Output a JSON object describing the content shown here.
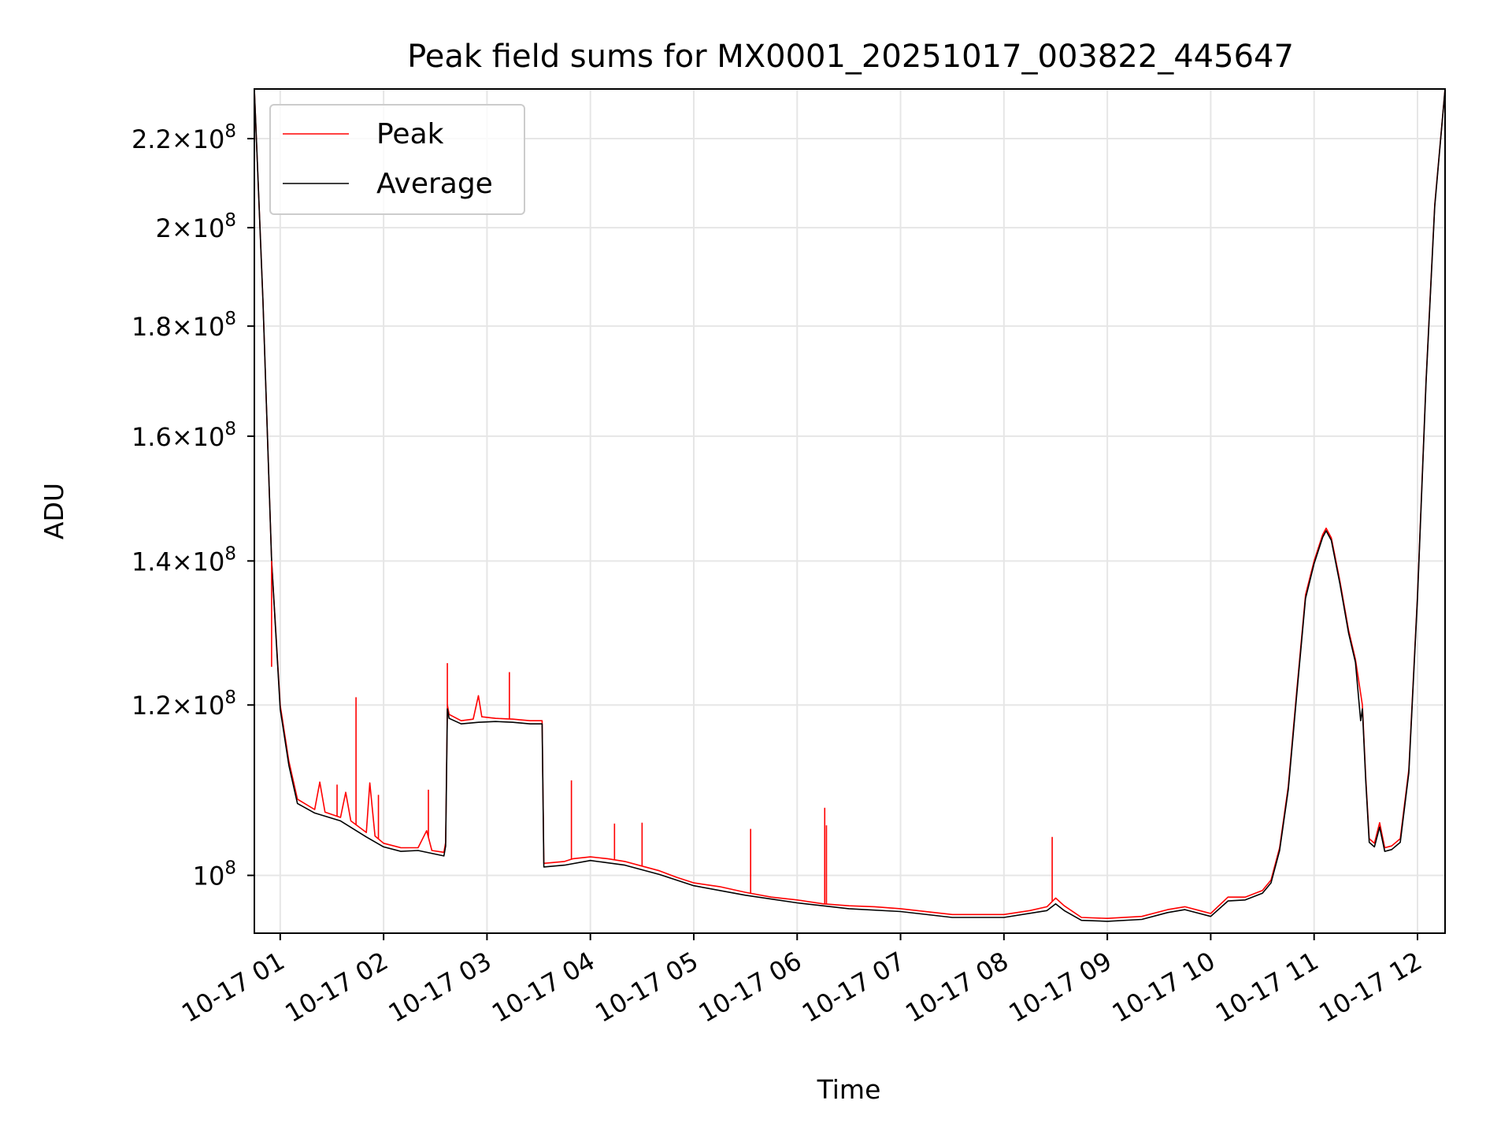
{
  "chart_data": {
    "type": "line",
    "title": "Peak field sums for MX0001_20251017_003822_445647",
    "xlabel": "Time",
    "ylabel": "ADU",
    "yscale": "log",
    "grid": true,
    "legend_position": "top-left",
    "xlim": [
      "2025-10-17 00:45",
      "2025-10-17 12:16"
    ],
    "ylim": [
      94000000,
      232000000
    ],
    "x_ticks": [
      {
        "t": "2025-10-17 01:00",
        "label": "10-17 01"
      },
      {
        "t": "2025-10-17 02:00",
        "label": "10-17 02"
      },
      {
        "t": "2025-10-17 03:00",
        "label": "10-17 03"
      },
      {
        "t": "2025-10-17 04:00",
        "label": "10-17 04"
      },
      {
        "t": "2025-10-17 05:00",
        "label": "10-17 05"
      },
      {
        "t": "2025-10-17 06:00",
        "label": "10-17 06"
      },
      {
        "t": "2025-10-17 07:00",
        "label": "10-17 07"
      },
      {
        "t": "2025-10-17 08:00",
        "label": "10-17 08"
      },
      {
        "t": "2025-10-17 09:00",
        "label": "10-17 09"
      },
      {
        "t": "2025-10-17 10:00",
        "label": "10-17 10"
      },
      {
        "t": "2025-10-17 11:00",
        "label": "10-17 11"
      },
      {
        "t": "2025-10-17 12:00",
        "label": "10-17 12"
      }
    ],
    "y_ticks": [
      {
        "value": 100000000,
        "mantissa": "",
        "exponent": "8"
      },
      {
        "value": 120000000,
        "mantissa": "1.2",
        "exponent": "8"
      },
      {
        "value": 140000000,
        "mantissa": "1.4",
        "exponent": "8"
      },
      {
        "value": 160000000,
        "mantissa": "1.6",
        "exponent": "8"
      },
      {
        "value": 180000000,
        "mantissa": "1.8",
        "exponent": "8"
      },
      {
        "value": 200000000,
        "mantissa": "2",
        "exponent": "8"
      },
      {
        "value": 220000000,
        "mantissa": "2.2",
        "exponent": "8"
      }
    ],
    "series": [
      {
        "name": "Peak",
        "color": "#ff0000",
        "points": [
          [
            "2025-10-17 00:45",
            232000000
          ],
          [
            "2025-10-17 00:50",
            185000000
          ],
          [
            "2025-10-17 00:55",
            140000000
          ],
          [
            "2025-10-17 01:00",
            120000000
          ],
          [
            "2025-10-17 01:05",
            113000000
          ],
          [
            "2025-10-17 01:10",
            108500000
          ],
          [
            "2025-10-17 01:20",
            107300000
          ],
          [
            "2025-10-17 01:23",
            110500000
          ],
          [
            "2025-10-17 01:26",
            107000000
          ],
          [
            "2025-10-17 01:35",
            106400000
          ],
          [
            "2025-10-17 01:38",
            109300000
          ],
          [
            "2025-10-17 01:41",
            106000000
          ],
          [
            "2025-10-17 01:50",
            104700000
          ],
          [
            "2025-10-17 01:52",
            110400000
          ],
          [
            "2025-10-17 01:55",
            104300000
          ],
          [
            "2025-10-17 02:00",
            103500000
          ],
          [
            "2025-10-17 02:10",
            103000000
          ],
          [
            "2025-10-17 02:20",
            103000000
          ],
          [
            "2025-10-17 02:25",
            104900000
          ],
          [
            "2025-10-17 02:28",
            102700000
          ],
          [
            "2025-10-17 02:35",
            102500000
          ],
          [
            "2025-10-17 02:36",
            103600000
          ],
          [
            "2025-10-17 02:37",
            120000000
          ],
          [
            "2025-10-17 02:38",
            118800000
          ],
          [
            "2025-10-17 02:45",
            118000000
          ],
          [
            "2025-10-17 02:52",
            118200000
          ],
          [
            "2025-10-17 02:55",
            121200000
          ],
          [
            "2025-10-17 02:57",
            118500000
          ],
          [
            "2025-10-17 03:05",
            118300000
          ],
          [
            "2025-10-17 03:15",
            118200000
          ],
          [
            "2025-10-17 03:25",
            118000000
          ],
          [
            "2025-10-17 03:32",
            118000000
          ],
          [
            "2025-10-17 03:33",
            101300000
          ],
          [
            "2025-10-17 03:45",
            101500000
          ],
          [
            "2025-10-17 03:50",
            101800000
          ],
          [
            "2025-10-17 04:00",
            102000000
          ],
          [
            "2025-10-17 04:10",
            101800000
          ],
          [
            "2025-10-17 04:20",
            101500000
          ],
          [
            "2025-10-17 04:30",
            101000000
          ],
          [
            "2025-10-17 04:40",
            100500000
          ],
          [
            "2025-10-17 04:50",
            99800000
          ],
          [
            "2025-10-17 05:00",
            99200000
          ],
          [
            "2025-10-17 05:15",
            98800000
          ],
          [
            "2025-10-17 05:30",
            98200000
          ],
          [
            "2025-10-17 05:45",
            97700000
          ],
          [
            "2025-10-17 06:00",
            97400000
          ],
          [
            "2025-10-17 06:15",
            97000000
          ],
          [
            "2025-10-17 06:30",
            96800000
          ],
          [
            "2025-10-17 06:45",
            96700000
          ],
          [
            "2025-10-17 07:00",
            96500000
          ],
          [
            "2025-10-17 07:30",
            95900000
          ],
          [
            "2025-10-17 08:00",
            95900000
          ],
          [
            "2025-10-17 08:15",
            96300000
          ],
          [
            "2025-10-17 08:25",
            96700000
          ],
          [
            "2025-10-17 08:30",
            97600000
          ],
          [
            "2025-10-17 08:35",
            96800000
          ],
          [
            "2025-10-17 08:45",
            95600000
          ],
          [
            "2025-10-17 09:00",
            95500000
          ],
          [
            "2025-10-17 09:20",
            95700000
          ],
          [
            "2025-10-17 09:35",
            96400000
          ],
          [
            "2025-10-17 09:45",
            96700000
          ],
          [
            "2025-10-17 10:00",
            96000000
          ],
          [
            "2025-10-17 10:10",
            97700000
          ],
          [
            "2025-10-17 10:20",
            97700000
          ],
          [
            "2025-10-17 10:30",
            98400000
          ],
          [
            "2025-10-17 10:35",
            99500000
          ],
          [
            "2025-10-17 10:40",
            103000000
          ],
          [
            "2025-10-17 10:45",
            110000000
          ],
          [
            "2025-10-17 10:50",
            122000000
          ],
          [
            "2025-10-17 10:55",
            135000000
          ],
          [
            "2025-10-17 11:00",
            140000000
          ],
          [
            "2025-10-17 11:05",
            144000000
          ],
          [
            "2025-10-17 11:07",
            145000000
          ],
          [
            "2025-10-17 11:10",
            143500000
          ],
          [
            "2025-10-17 11:15",
            137000000
          ],
          [
            "2025-10-17 11:20",
            130000000
          ],
          [
            "2025-10-17 11:24",
            126000000
          ],
          [
            "2025-10-17 11:28",
            120000000
          ],
          [
            "2025-10-17 11:30",
            111000000
          ],
          [
            "2025-10-17 11:32",
            104000000
          ],
          [
            "2025-10-17 11:35",
            103500000
          ],
          [
            "2025-10-17 11:38",
            105800000
          ],
          [
            "2025-10-17 11:41",
            103000000
          ],
          [
            "2025-10-17 11:45",
            103200000
          ],
          [
            "2025-10-17 11:50",
            104000000
          ],
          [
            "2025-10-17 11:55",
            112000000
          ],
          [
            "2025-10-17 12:00",
            135000000
          ],
          [
            "2025-10-17 12:05",
            170000000
          ],
          [
            "2025-10-17 12:10",
            205000000
          ],
          [
            "2025-10-17 12:16",
            232000000
          ]
        ]
      },
      {
        "name": "Average",
        "color": "#000000",
        "points": [
          [
            "2025-10-17 00:45",
            232000000
          ],
          [
            "2025-10-17 00:50",
            185000000
          ],
          [
            "2025-10-17 00:55",
            140000000
          ],
          [
            "2025-10-17 01:00",
            119500000
          ],
          [
            "2025-10-17 01:05",
            112500000
          ],
          [
            "2025-10-17 01:10",
            108000000
          ],
          [
            "2025-10-17 01:20",
            106900000
          ],
          [
            "2025-10-17 01:35",
            106000000
          ],
          [
            "2025-10-17 01:50",
            104200000
          ],
          [
            "2025-10-17 02:00",
            103100000
          ],
          [
            "2025-10-17 02:10",
            102600000
          ],
          [
            "2025-10-17 02:20",
            102700000
          ],
          [
            "2025-10-17 02:35",
            102100000
          ],
          [
            "2025-10-17 02:36",
            103200000
          ],
          [
            "2025-10-17 02:37",
            119500000
          ],
          [
            "2025-10-17 02:38",
            118300000
          ],
          [
            "2025-10-17 02:45",
            117600000
          ],
          [
            "2025-10-17 02:55",
            117800000
          ],
          [
            "2025-10-17 03:05",
            117900000
          ],
          [
            "2025-10-17 03:15",
            117800000
          ],
          [
            "2025-10-17 03:25",
            117600000
          ],
          [
            "2025-10-17 03:32",
            117600000
          ],
          [
            "2025-10-17 03:33",
            100900000
          ],
          [
            "2025-10-17 03:45",
            101100000
          ],
          [
            "2025-10-17 04:00",
            101600000
          ],
          [
            "2025-10-17 04:20",
            101100000
          ],
          [
            "2025-10-17 04:40",
            100100000
          ],
          [
            "2025-10-17 05:00",
            98900000
          ],
          [
            "2025-10-17 05:30",
            97900000
          ],
          [
            "2025-10-17 06:00",
            97100000
          ],
          [
            "2025-10-17 06:30",
            96500000
          ],
          [
            "2025-10-17 07:00",
            96200000
          ],
          [
            "2025-10-17 07:30",
            95600000
          ],
          [
            "2025-10-17 08:00",
            95600000
          ],
          [
            "2025-10-17 08:25",
            96300000
          ],
          [
            "2025-10-17 08:30",
            97000000
          ],
          [
            "2025-10-17 08:35",
            96300000
          ],
          [
            "2025-10-17 08:45",
            95300000
          ],
          [
            "2025-10-17 09:00",
            95200000
          ],
          [
            "2025-10-17 09:20",
            95400000
          ],
          [
            "2025-10-17 09:35",
            96100000
          ],
          [
            "2025-10-17 09:45",
            96400000
          ],
          [
            "2025-10-17 10:00",
            95700000
          ],
          [
            "2025-10-17 10:10",
            97300000
          ],
          [
            "2025-10-17 10:20",
            97400000
          ],
          [
            "2025-10-17 10:30",
            98100000
          ],
          [
            "2025-10-17 10:35",
            99200000
          ],
          [
            "2025-10-17 10:40",
            102700000
          ],
          [
            "2025-10-17 10:45",
            109600000
          ],
          [
            "2025-10-17 10:50",
            121500000
          ],
          [
            "2025-10-17 10:55",
            134500000
          ],
          [
            "2025-10-17 11:00",
            139600000
          ],
          [
            "2025-10-17 11:05",
            143600000
          ],
          [
            "2025-10-17 11:07",
            144600000
          ],
          [
            "2025-10-17 11:10",
            143100000
          ],
          [
            "2025-10-17 11:15",
            136600000
          ],
          [
            "2025-10-17 11:20",
            129600000
          ],
          [
            "2025-10-17 11:24",
            125600000
          ],
          [
            "2025-10-17 11:27",
            118000000
          ],
          [
            "2025-10-17 11:28",
            119500000
          ],
          [
            "2025-10-17 11:30",
            110600000
          ],
          [
            "2025-10-17 11:32",
            103600000
          ],
          [
            "2025-10-17 11:35",
            103100000
          ],
          [
            "2025-10-17 11:38",
            105300000
          ],
          [
            "2025-10-17 11:41",
            102600000
          ],
          [
            "2025-10-17 11:45",
            102800000
          ],
          [
            "2025-10-17 11:50",
            103600000
          ],
          [
            "2025-10-17 11:55",
            111600000
          ],
          [
            "2025-10-17 12:00",
            134600000
          ],
          [
            "2025-10-17 12:05",
            169600000
          ],
          [
            "2025-10-17 12:10",
            204600000
          ],
          [
            "2025-10-17 12:16",
            232000000
          ]
        ]
      }
    ],
    "peak_spikes": [
      [
        "2025-10-17 00:55",
        125000000
      ],
      [
        "2025-10-17 01:12",
        108300000
      ],
      [
        "2025-10-17 01:33",
        110200000
      ],
      [
        "2025-10-17 01:44",
        121000000
      ],
      [
        "2025-10-17 01:57",
        109000000
      ],
      [
        "2025-10-17 02:26",
        109600000
      ],
      [
        "2025-10-17 02:37",
        125500000
      ],
      [
        "2025-10-17 03:13",
        124300000
      ],
      [
        "2025-10-17 03:49",
        110700000
      ],
      [
        "2025-10-17 04:14",
        105700000
      ],
      [
        "2025-10-17 04:30",
        105800000
      ],
      [
        "2025-10-17 05:33",
        105100000
      ],
      [
        "2025-10-17 06:16",
        107500000
      ],
      [
        "2025-10-17 06:17",
        105500000
      ],
      [
        "2025-10-17 08:28",
        104200000
      ]
    ]
  }
}
